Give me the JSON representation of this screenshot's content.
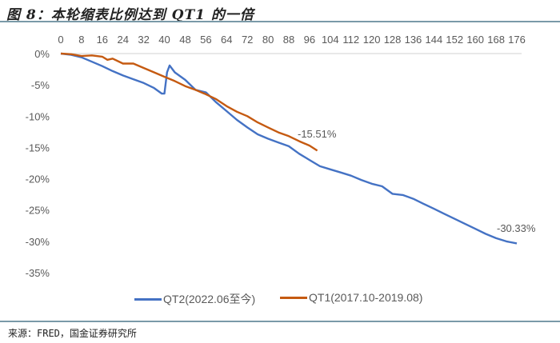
{
  "header": {
    "title": "图 8：本轮缩表比例达到 QT1 的一倍"
  },
  "footer": {
    "source": "来源：FRED，国金证券研究所"
  },
  "legend": [
    {
      "label": "QT2(2022.06至今)",
      "color": "#4472C4"
    },
    {
      "label": "QT1(2017.10-2019.08)",
      "color": "#C55A11"
    }
  ],
  "annotations": {
    "qt1_end": "-15.51%",
    "qt2_end": "-30.33%"
  },
  "chart_data": {
    "type": "line",
    "title": "图 8：本轮缩表比例达到 QT1 的一倍",
    "xlabel": "",
    "ylabel": "",
    "x_ticks": [
      0,
      8,
      16,
      24,
      32,
      40,
      48,
      56,
      64,
      72,
      80,
      88,
      96,
      104,
      112,
      120,
      128,
      136,
      144,
      152,
      160,
      168,
      176
    ],
    "x_axis_position": "top",
    "y_ticks": [
      "0%",
      "-5%",
      "-10%",
      "-15%",
      "-20%",
      "-25%",
      "-30%",
      "-35%"
    ],
    "ylim": [
      -35,
      0
    ],
    "xlim": [
      0,
      176
    ],
    "grid": false,
    "legend_position": "bottom",
    "series": [
      {
        "name": "QT2(2022.06至今)",
        "color": "#4472C4",
        "x": [
          0,
          4,
          8,
          12,
          16,
          20,
          24,
          28,
          32,
          36,
          39,
          40,
          41,
          42,
          44,
          48,
          52,
          56,
          60,
          64,
          68,
          72,
          76,
          80,
          84,
          88,
          92,
          96,
          100,
          104,
          108,
          112,
          116,
          120,
          124,
          128,
          132,
          136,
          140,
          144,
          148,
          152,
          156,
          160,
          164,
          168,
          172,
          176
        ],
        "values": [
          0,
          -0.2,
          -0.6,
          -1.3,
          -2.0,
          -2.8,
          -3.5,
          -4.1,
          -4.7,
          -5.5,
          -6.4,
          -6.4,
          -3.0,
          -1.9,
          -3.0,
          -4.2,
          -5.8,
          -6.2,
          -7.8,
          -9.2,
          -10.6,
          -11.8,
          -12.9,
          -13.6,
          -14.2,
          -14.8,
          -16.0,
          -17.0,
          -18.0,
          -18.5,
          -19.0,
          -19.5,
          -20.2,
          -20.8,
          -21.2,
          -22.4,
          -22.6,
          -23.2,
          -24.0,
          -24.8,
          -25.6,
          -26.4,
          -27.2,
          -28.0,
          -28.8,
          -29.5,
          -30.0,
          -30.33
        ]
      },
      {
        "name": "QT1(2017.10-2019.08)",
        "color": "#C55A11",
        "x": [
          0,
          4,
          8,
          12,
          16,
          18,
          20,
          24,
          28,
          32,
          36,
          40,
          44,
          48,
          52,
          56,
          60,
          64,
          68,
          72,
          76,
          80,
          84,
          88,
          92,
          96,
          99
        ],
        "values": [
          0,
          -0.1,
          -0.4,
          -0.3,
          -0.5,
          -1.0,
          -0.8,
          -1.6,
          -1.6,
          -2.3,
          -3.0,
          -3.7,
          -4.4,
          -5.2,
          -5.8,
          -6.5,
          -7.3,
          -8.4,
          -9.3,
          -10.0,
          -11.0,
          -11.8,
          -12.6,
          -13.2,
          -14.0,
          -14.7,
          -15.51
        ]
      }
    ]
  }
}
